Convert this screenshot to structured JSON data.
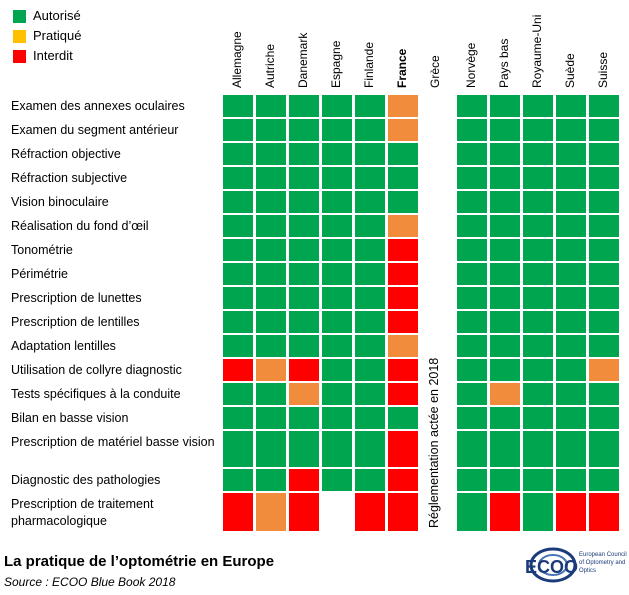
{
  "legend": {
    "items": [
      {
        "label": "Autorisé",
        "color": "#00a550"
      },
      {
        "label": "Pratiqué",
        "color": "#ffc000"
      },
      {
        "label": "Interdit",
        "color": "#ff0000"
      }
    ]
  },
  "colors": {
    "A": "#00a550",
    "P": "#f08c3c",
    "I": "#ff0000",
    "E": "#ffffff"
  },
  "chart_data": {
    "type": "table",
    "countries": [
      "Allemagne",
      "Autriche",
      "Danemark",
      "Espagne",
      "Finlande",
      "France",
      "Grèce",
      "Norvège",
      "Pays bas",
      "Royaume-Uni",
      "Suède",
      "Suisse"
    ],
    "highlighted_country": "France",
    "rows": [
      {
        "label": "Examen des annexes oculaires",
        "values": [
          "A",
          "A",
          "A",
          "A",
          "A",
          "P",
          "E",
          "A",
          "A",
          "A",
          "A",
          "A"
        ]
      },
      {
        "label": "Examen du segment antérieur",
        "values": [
          "A",
          "A",
          "A",
          "A",
          "A",
          "P",
          "E",
          "A",
          "A",
          "A",
          "A",
          "A"
        ]
      },
      {
        "label": "Réfraction objective",
        "values": [
          "A",
          "A",
          "A",
          "A",
          "A",
          "A",
          "E",
          "A",
          "A",
          "A",
          "A",
          "A"
        ]
      },
      {
        "label": "Réfraction subjective",
        "values": [
          "A",
          "A",
          "A",
          "A",
          "A",
          "A",
          "E",
          "A",
          "A",
          "A",
          "A",
          "A"
        ]
      },
      {
        "label": "Vision binoculaire",
        "values": [
          "A",
          "A",
          "A",
          "A",
          "A",
          "A",
          "E",
          "A",
          "A",
          "A",
          "A",
          "A"
        ]
      },
      {
        "label": "Réalisation du fond d’œil",
        "values": [
          "A",
          "A",
          "A",
          "A",
          "A",
          "P",
          "E",
          "A",
          "A",
          "A",
          "A",
          "A"
        ]
      },
      {
        "label": "Tonométrie",
        "values": [
          "A",
          "A",
          "A",
          "A",
          "A",
          "I",
          "E",
          "A",
          "A",
          "A",
          "A",
          "A"
        ]
      },
      {
        "label": "Périmétrie",
        "values": [
          "A",
          "A",
          "A",
          "A",
          "A",
          "I",
          "E",
          "A",
          "A",
          "A",
          "A",
          "A"
        ]
      },
      {
        "label": "Prescription de lunettes",
        "values": [
          "A",
          "A",
          "A",
          "A",
          "A",
          "I",
          "E",
          "A",
          "A",
          "A",
          "A",
          "A"
        ]
      },
      {
        "label": "Prescription de lentilles",
        "values": [
          "A",
          "A",
          "A",
          "A",
          "A",
          "I",
          "E",
          "A",
          "A",
          "A",
          "A",
          "A"
        ]
      },
      {
        "label": "Adaptation lentilles",
        "values": [
          "A",
          "A",
          "A",
          "A",
          "A",
          "P",
          "E",
          "A",
          "A",
          "A",
          "A",
          "A"
        ]
      },
      {
        "label": "Utilisation de collyre diagnostic",
        "values": [
          "I",
          "P",
          "I",
          "A",
          "A",
          "I",
          "E",
          "A",
          "A",
          "A",
          "A",
          "P"
        ]
      },
      {
        "label": "Tests spécifiques à la conduite",
        "values": [
          "A",
          "A",
          "P",
          "A",
          "A",
          "I",
          "E",
          "A",
          "P",
          "A",
          "A",
          "A"
        ]
      },
      {
        "label": "Bilan en basse vision",
        "values": [
          "A",
          "A",
          "A",
          "A",
          "A",
          "A",
          "E",
          "A",
          "A",
          "A",
          "A",
          "A"
        ]
      },
      {
        "label": "Prescription de matériel basse vision",
        "values": [
          "A",
          "A",
          "A",
          "A",
          "A",
          "I",
          "E",
          "A",
          "A",
          "A",
          "A",
          "A"
        ]
      },
      {
        "label": "Diagnostic des pathologies",
        "values": [
          "A",
          "A",
          "I",
          "A",
          "A",
          "I",
          "E",
          "A",
          "A",
          "A",
          "A",
          "A"
        ]
      },
      {
        "label": "Prescription de traitement pharmacologique",
        "values": [
          "I",
          "P",
          "I",
          "E",
          "I",
          "I",
          "E",
          "A",
          "I",
          "A",
          "I",
          "I"
        ]
      }
    ],
    "vertical_note": "Réglementation actée en 2018"
  },
  "footer": {
    "title": "La pratique de l’optométrie en Europe",
    "source": "Source : ECOO Blue Book 2018"
  },
  "logo": {
    "text": "ECOO",
    "subtitle": "European Council of Optometry and Optics"
  }
}
